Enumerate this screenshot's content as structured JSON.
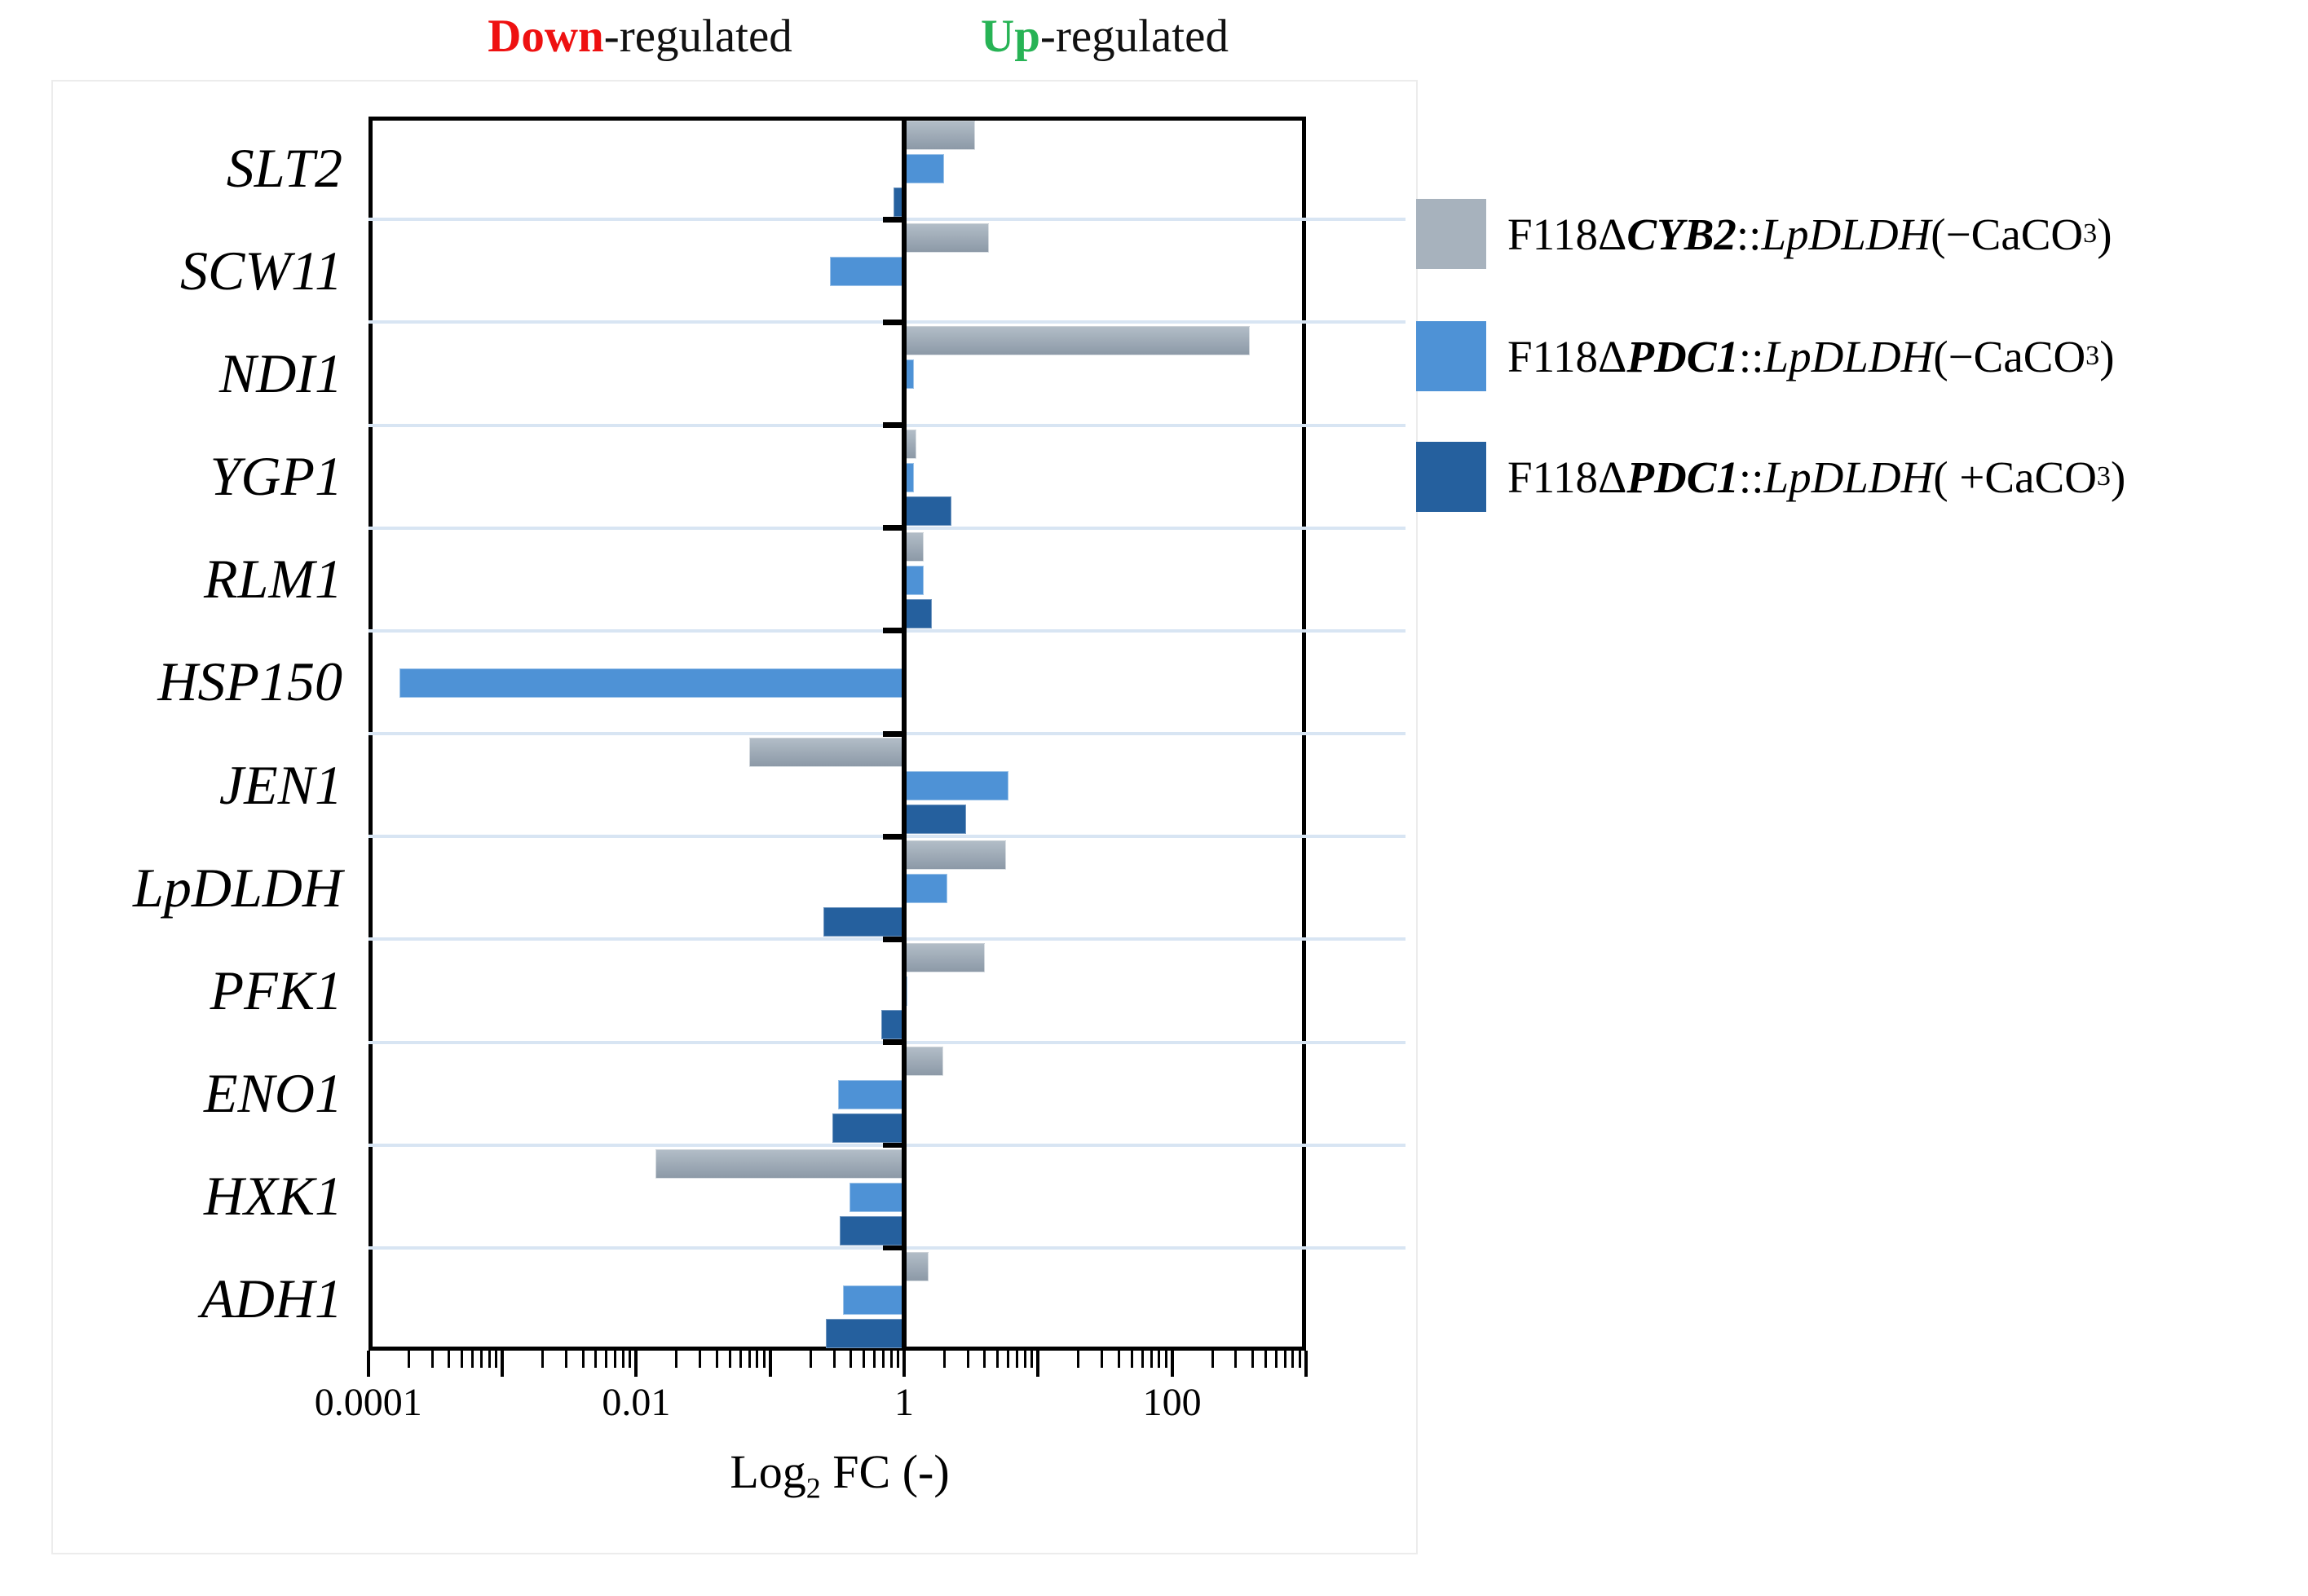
{
  "header": {
    "down_word": "Down",
    "down_rest": "-regulated",
    "up_word": "Up",
    "up_rest": "-regulated"
  },
  "axis": {
    "title_main": "Log",
    "title_sub": "2",
    "title_rest": " FC (-)",
    "tick_labels": [
      "0.0001",
      "0.01",
      "1",
      "100"
    ]
  },
  "colors": {
    "series_gray": "#a7b2bd",
    "series_light_blue": "#4e92d6",
    "series_dark_blue": "#25609e",
    "down_word_red": "#ee1111",
    "up_word_green": "#27b355",
    "row_divider": "#d8e5f3"
  },
  "legend": [
    {
      "prefix": "F118Δ",
      "gene": "CYB2",
      "sep": "::",
      "construct": "LpDLDH",
      "suffix_open": "(−CaCO",
      "sub": "3",
      "suffix_close": ")",
      "color_key": "series_gray"
    },
    {
      "prefix": "F118Δ",
      "gene": "PDC1",
      "sep": "::",
      "construct": "LpDLDH",
      "suffix_open": "(−CaCO",
      "sub": "3",
      "suffix_close": ")",
      "color_key": "series_light_blue"
    },
    {
      "prefix": "F118Δ",
      "gene": "PDC1",
      "sep": "::",
      "construct": "LpDLDH",
      "suffix_open": "( +CaCO",
      "sub": "3",
      "suffix_close": ")",
      "color_key": "series_dark_blue"
    }
  ],
  "chart_data": {
    "type": "bar",
    "orientation": "horizontal",
    "x_scale": "log10",
    "x_range": [
      0.0001,
      1000
    ],
    "baseline": 1,
    "x_tick_values": [
      0.0001,
      0.01,
      1,
      100
    ],
    "x_tick_labels": [
      "0.0001",
      "0.01",
      "1",
      "100"
    ],
    "xlabel": "Log2 FC (-)",
    "annotations": {
      "left": "Down-regulated",
      "right": "Up-regulated"
    },
    "grid": "horizontal-row-dividers",
    "legend_position": "right",
    "categories": [
      "SLT2",
      "SCW11",
      "NDI1",
      "YGP1",
      "RLM1",
      "HSP150",
      "JEN1",
      "LpDLDH",
      "PFK1",
      "ENO1",
      "HXK1",
      "ADH1"
    ],
    "series": [
      {
        "name": "F118ΔCYB2::LpDLDH(−CaCO3)",
        "color_key": "series_gray",
        "values": [
          3.4,
          4.3,
          380,
          1.23,
          1.4,
          null,
          0.07,
          5.8,
          4.0,
          1.96,
          0.014,
          1.52
        ]
      },
      {
        "name": "F118ΔPDC1::LpDLDH(−CaCO3)",
        "color_key": "series_light_blue",
        "values": [
          2.0,
          0.28,
          1.18,
          1.18,
          1.4,
          0.00017,
          6.0,
          2.1,
          1.06,
          0.32,
          0.39,
          0.35
        ]
      },
      {
        "name": "F118ΔPDC1::LpDLDH(+CaCO3)",
        "color_key": "series_dark_blue",
        "values": [
          0.83,
          null,
          null,
          2.25,
          1.6,
          null,
          2.9,
          0.25,
          0.68,
          0.29,
          0.33,
          0.26
        ]
      }
    ]
  }
}
